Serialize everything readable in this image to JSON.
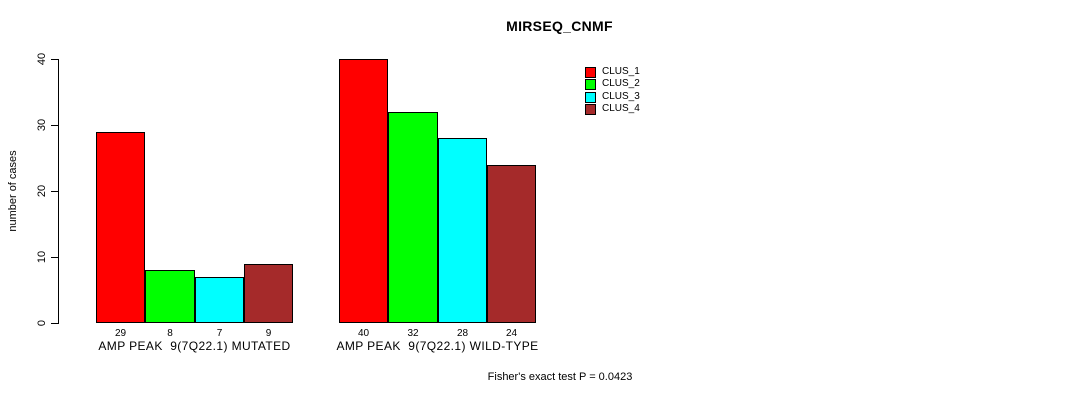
{
  "chart_data": {
    "type": "bar",
    "title": "MIRSEQ_CNMF",
    "ylabel": "number of cases",
    "ylim": [
      0,
      40
    ],
    "yticks": [
      0,
      10,
      20,
      30,
      40
    ],
    "grid": false,
    "legend_position": "top-right",
    "categories": [
      "AMP PEAK  9(7Q22.1) MUTATED",
      "AMP PEAK  9(7Q22.1) WILD-TYPE"
    ],
    "series": [
      {
        "name": "CLUS_1",
        "color": "#ff0000",
        "values": [
          29,
          40
        ]
      },
      {
        "name": "CLUS_2",
        "color": "#00ff00",
        "values": [
          8,
          32
        ]
      },
      {
        "name": "CLUS_3",
        "color": "#00ffff",
        "values": [
          7,
          28
        ]
      },
      {
        "name": "CLUS_4",
        "color": "#a52a2a",
        "values": [
          9,
          24
        ]
      }
    ],
    "bar_border_color": "#000000",
    "annotation": "Fisher's exact test P = 0.0423"
  },
  "footer": {
    "note": "Fisher's exact test P = 0.0423"
  }
}
